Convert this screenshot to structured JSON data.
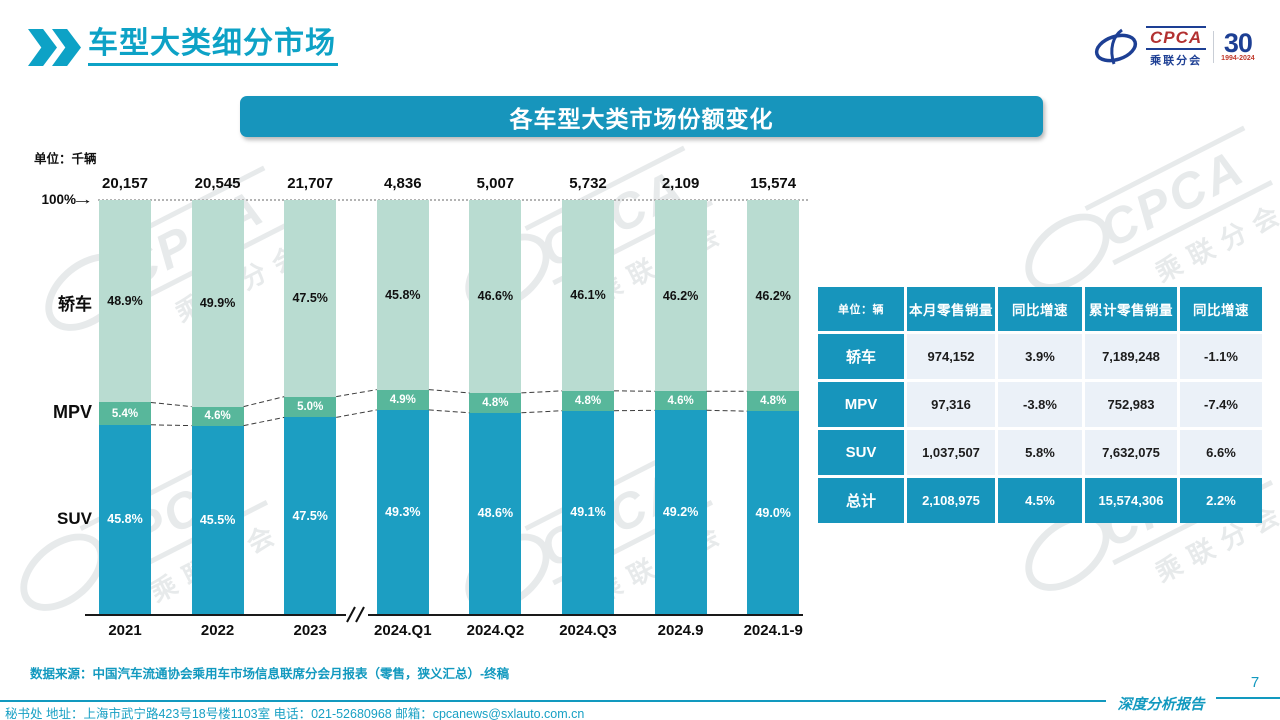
{
  "page": {
    "title": "车型大类细分市场",
    "page_number": "7",
    "report_label": "深度分析报告"
  },
  "logo": {
    "cpca": "CPCA",
    "cpca_sub": "乘联分会",
    "anniversary": "30",
    "years": "1994-2024"
  },
  "watermark": {
    "main": "CPCA",
    "sub": "乘联分会"
  },
  "banner": {
    "title": "各车型大类市场份额变化"
  },
  "unit_label": "单位：千辆",
  "chart_data": {
    "type": "bar",
    "stacked": true,
    "title": "各车型大类市场份额变化",
    "unit": "千辆",
    "categories": [
      "2021",
      "2022",
      "2023",
      "2024.Q1",
      "2024.Q2",
      "2024.Q3",
      "2024.9",
      "2024.1-9"
    ],
    "totals": [
      "20,157",
      "20,545",
      "21,707",
      "4,836",
      "5,007",
      "5,732",
      "2,109",
      "15,574"
    ],
    "series": [
      {
        "name": "轿车",
        "position": "top",
        "color": "#b9dcd1",
        "label_color": "#111111",
        "label_size": 12.5,
        "values": [
          48.9,
          49.9,
          47.5,
          45.8,
          46.6,
          46.1,
          46.2,
          46.2
        ]
      },
      {
        "name": "MPV",
        "position": "middle",
        "color": "#58b79b",
        "label_color": "#ffffff",
        "label_size": 11.5,
        "values": [
          5.4,
          4.6,
          5.0,
          4.9,
          4.8,
          4.8,
          4.6,
          4.8
        ]
      },
      {
        "name": "SUV",
        "position": "bottom",
        "color": "#1c9ec2",
        "label_color": "#ffffff",
        "label_size": 12.5,
        "values": [
          45.8,
          45.5,
          47.5,
          49.3,
          48.6,
          49.1,
          49.2,
          49.0
        ]
      }
    ],
    "value_suffix": "%",
    "ylim": [
      0,
      100
    ],
    "y_axis_top_label": "100%",
    "axis_break_between": [
      "2023",
      "2024.Q1"
    ],
    "grid": "top-dotted-line-only",
    "legend_position": "left-side-labels"
  },
  "table": {
    "unit_header": "单位：辆",
    "col_headers": [
      "本月零售销量",
      "同比增速",
      "累计零售销量",
      "同比增速"
    ],
    "rows": [
      {
        "label": "轿车",
        "cells": [
          "974,152",
          "3.9%",
          "7,189,248",
          "-1.1%"
        ]
      },
      {
        "label": "MPV",
        "cells": [
          "97,316",
          "-3.8%",
          "752,983",
          "-7.4%"
        ]
      },
      {
        "label": "SUV",
        "cells": [
          "1,037,507",
          "5.8%",
          "7,632,075",
          "6.6%"
        ]
      }
    ],
    "total_row": {
      "label": "总计",
      "cells": [
        "2,108,975",
        "4.5%",
        "15,574,306",
        "2.2%"
      ]
    }
  },
  "source": "数据来源：中国汽车流通协会乘用车市场信息联席分会月报表（零售，狭义汇总）-终稿",
  "footer": "秘书处  地址：上海市武宁路423号18号楼1103室 电话：021-52680968  邮箱：cpcanews@sxlauto.com.cn",
  "colors": {
    "accent": "#1299bf",
    "banner": "#1795bc",
    "sedan_bar": "#b9dcd1",
    "mpv_bar": "#58b79b",
    "suv_bar": "#1c9ec2",
    "table_cell_bg": "#ebf1f8",
    "logo_navy": "#1d3f94",
    "logo_red": "#b23131"
  }
}
